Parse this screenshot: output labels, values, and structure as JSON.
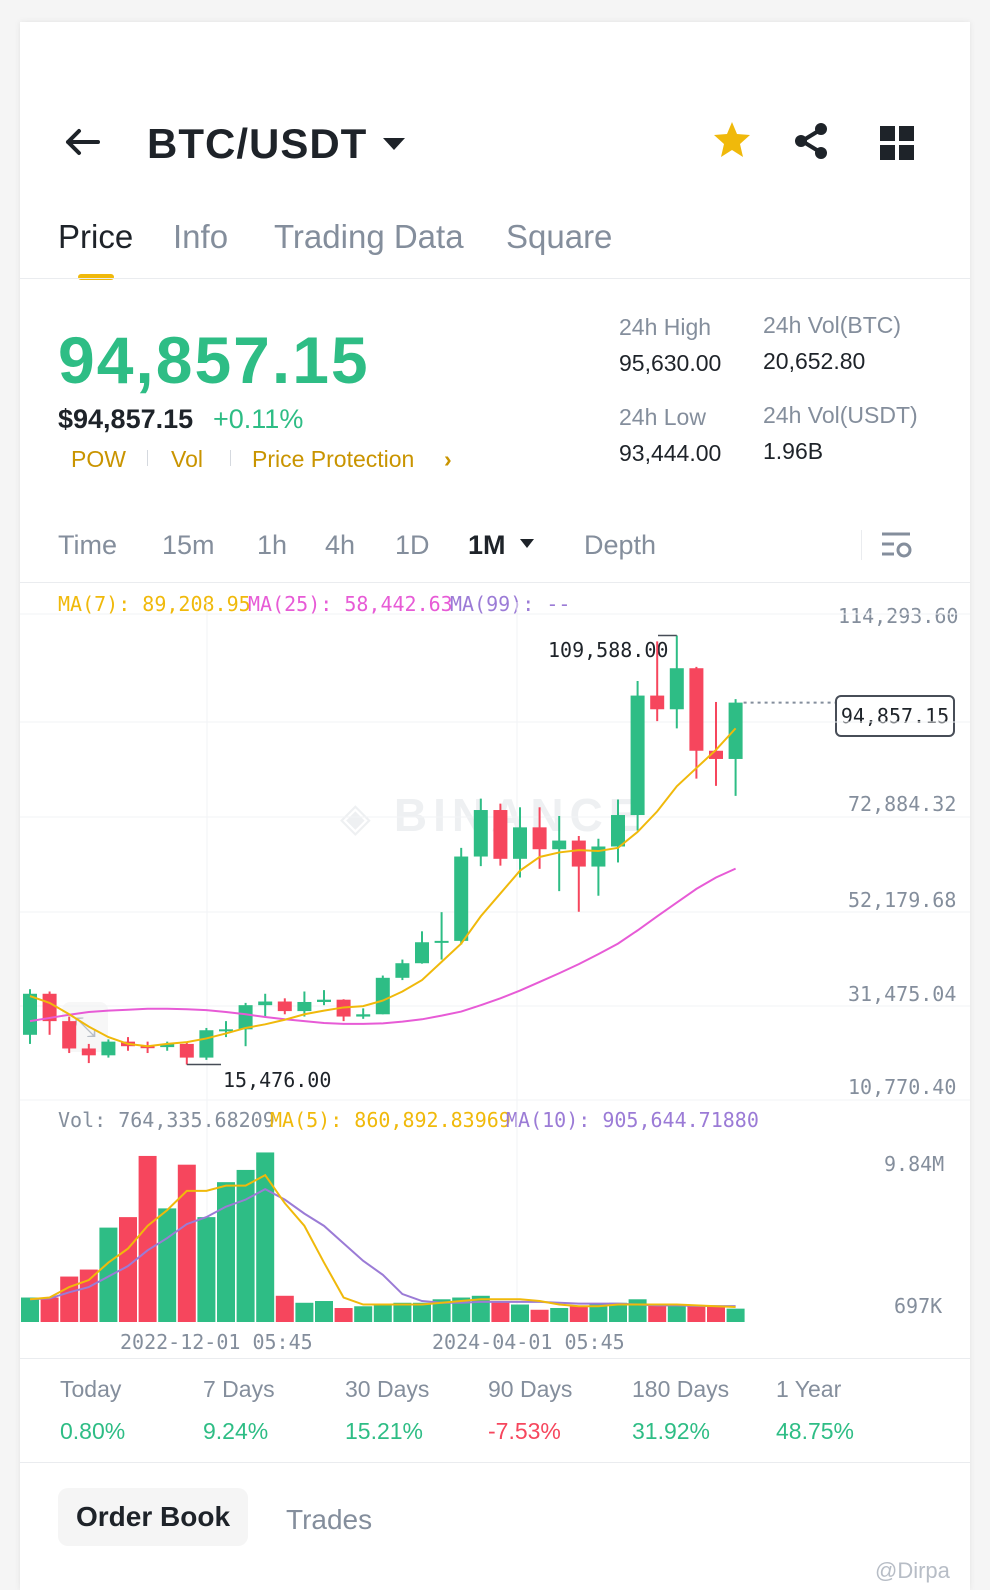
{
  "header": {
    "pair": "BTC/USDT",
    "icons": [
      "back-arrow-icon",
      "caret-down-icon",
      "star-icon",
      "share-icon",
      "grid-icon"
    ]
  },
  "tabs": [
    {
      "label": "Price",
      "active": true
    },
    {
      "label": "Info",
      "active": false
    },
    {
      "label": "Trading Data",
      "active": false
    },
    {
      "label": "Square",
      "active": false
    }
  ],
  "price": {
    "last": "94,857.15",
    "usd": "$94,857.15",
    "change": "+0.11%",
    "tags": [
      "POW",
      "Vol",
      "Price Protection"
    ],
    "chevron": "›"
  },
  "stats": {
    "high_label": "24h High",
    "high_value": "95,630.00",
    "vol_btc_label": "24h Vol(BTC)",
    "vol_btc_value": "20,652.80",
    "low_label": "24h Low",
    "low_value": "93,444.00",
    "vol_usdt_label": "24h Vol(USDT)",
    "vol_usdt_value": "1.96B"
  },
  "intervals": {
    "items": [
      "Time",
      "15m",
      "1h",
      "4h",
      "1D",
      "1M",
      "Depth"
    ],
    "active": "1M"
  },
  "chart": {
    "ma7": "MA(7): 89,208.95",
    "ma25": "MA(25): 58,442.63",
    "ma99": "MA(99): --",
    "y_ticks": [
      "114,293.60",
      "72,884.32",
      "52,179.68",
      "31,475.04",
      "10,770.40"
    ],
    "current_price_tag": "94,857.15",
    "max_label": "109,588.00",
    "min_label": "15,476.00",
    "watermark": "BINANCE",
    "vol_label": "Vol: 764,335.68209",
    "vol_ma5": "MA(5): 860,892.83969",
    "vol_ma10": "MA(10): 905,644.71880",
    "vol_ticks": [
      "9.84M",
      "697K"
    ],
    "x_ticks": [
      "2022-12-01 05:45",
      "2024-04-01 05:45"
    ],
    "colors": {
      "up": "#2ebd85",
      "down": "#f6465d",
      "ma7": "#f0b90b",
      "ma25": "#e75bd6",
      "ma99": "#9b7bd6"
    }
  },
  "chart_data": {
    "type": "candlestick",
    "interval": "1M",
    "y_range": [
      10770.4,
      114293.6
    ],
    "candles": [
      {
        "o": 22000,
        "c": 31000,
        "h": 32000,
        "l": 20000
      },
      {
        "o": 31000,
        "c": 25000,
        "h": 31500,
        "l": 22000
      },
      {
        "o": 25000,
        "c": 19000,
        "h": 26000,
        "l": 18000
      },
      {
        "o": 19000,
        "c": 17500,
        "h": 20000,
        "l": 15800
      },
      {
        "o": 17500,
        "c": 20500,
        "h": 21000,
        "l": 17000
      },
      {
        "o": 20500,
        "c": 19500,
        "h": 21500,
        "l": 18500
      },
      {
        "o": 19500,
        "c": 19300,
        "h": 20500,
        "l": 18000
      },
      {
        "o": 19300,
        "c": 20000,
        "h": 20500,
        "l": 18500
      },
      {
        "o": 20000,
        "c": 17000,
        "h": 20500,
        "l": 15476
      },
      {
        "o": 17000,
        "c": 23000,
        "h": 23500,
        "l": 16500
      },
      {
        "o": 23000,
        "c": 23200,
        "h": 25000,
        "l": 21500
      },
      {
        "o": 23200,
        "c": 28500,
        "h": 29000,
        "l": 19500
      },
      {
        "o": 28500,
        "c": 29300,
        "h": 31000,
        "l": 26000
      },
      {
        "o": 29300,
        "c": 27200,
        "h": 30000,
        "l": 26500
      },
      {
        "o": 27200,
        "c": 29200,
        "h": 31500,
        "l": 26000
      },
      {
        "o": 29200,
        "c": 29700,
        "h": 31800,
        "l": 28500
      },
      {
        "o": 29700,
        "c": 26000,
        "h": 29800,
        "l": 25000
      },
      {
        "o": 26000,
        "c": 26500,
        "h": 27800,
        "l": 25500
      },
      {
        "o": 26500,
        "c": 34500,
        "h": 35000,
        "l": 26500
      },
      {
        "o": 34500,
        "c": 37700,
        "h": 38500,
        "l": 34000
      },
      {
        "o": 37700,
        "c": 42300,
        "h": 44700,
        "l": 37600
      },
      {
        "o": 42300,
        "c": 42600,
        "h": 48900,
        "l": 38500
      },
      {
        "o": 42600,
        "c": 61100,
        "h": 63000,
        "l": 41800
      },
      {
        "o": 61100,
        "c": 71300,
        "h": 73800,
        "l": 59000
      },
      {
        "o": 71300,
        "c": 60600,
        "h": 72700,
        "l": 59100
      },
      {
        "o": 60600,
        "c": 67500,
        "h": 71900,
        "l": 56500
      },
      {
        "o": 67500,
        "c": 62700,
        "h": 71900,
        "l": 58400
      },
      {
        "o": 62700,
        "c": 64600,
        "h": 70000,
        "l": 53500
      },
      {
        "o": 64600,
        "c": 58900,
        "h": 65600,
        "l": 49000
      },
      {
        "o": 58900,
        "c": 63300,
        "h": 65000,
        "l": 52500
      },
      {
        "o": 63300,
        "c": 70200,
        "h": 73600,
        "l": 59800
      },
      {
        "o": 70200,
        "c": 96400,
        "h": 99600,
        "l": 66800
      },
      {
        "o": 96400,
        "c": 93400,
        "h": 108300,
        "l": 90800
      },
      {
        "o": 93400,
        "c": 102400,
        "h": 109588,
        "l": 89200
      },
      {
        "o": 102400,
        "c": 84300,
        "h": 102700,
        "l": 78200
      },
      {
        "o": 84300,
        "c": 82500,
        "h": 95000,
        "l": 76600
      },
      {
        "o": 82500,
        "c": 94857.15,
        "h": 95630,
        "l": 74400
      }
    ],
    "ma7": [
      30500,
      29000,
      26500,
      23800,
      21500,
      20000,
      19500,
      20000,
      20400,
      21200,
      22300,
      23500,
      24300,
      25300,
      26500,
      27300,
      28000,
      28300,
      29500,
      31500,
      34000,
      38000,
      42000,
      48000,
      53000,
      58000,
      61000,
      62000,
      62500,
      62300,
      63000,
      66500,
      71000,
      76500,
      80500,
      84500,
      89208.95
    ],
    "ma25": [
      25000,
      25700,
      26400,
      27000,
      27300,
      27500,
      27700,
      27700,
      27600,
      27400,
      27000,
      26500,
      25900,
      25400,
      25000,
      24600,
      24400,
      24400,
      24500,
      24900,
      25400,
      26200,
      27100,
      28500,
      30000,
      31700,
      33600,
      35500,
      37500,
      39700,
      42000,
      44900,
      48000,
      51000,
      54000,
      56500,
      58442.63
    ],
    "volume": {
      "y_range": [
        697000,
        9840000
      ],
      "bars": [
        1400000,
        1400000,
        2600000,
        3000000,
        5400000,
        6000000,
        9500000,
        6500000,
        9000000,
        6000000,
        8000000,
        8700000,
        9700000,
        1500000,
        1100000,
        1200000,
        800000,
        900000,
        1000000,
        1100000,
        1100000,
        1300000,
        1400000,
        1500000,
        1200000,
        1000000,
        700000,
        800000,
        900000,
        1000000,
        1100000,
        1300000,
        1000000,
        1000000,
        900000,
        900000,
        764335.68
      ],
      "ma5": [
        1300000,
        1400000,
        2000000,
        2400000,
        3400000,
        4200000,
        5500000,
        6400000,
        7500000,
        7500000,
        7800000,
        7800000,
        8400000,
        6800000,
        5500000,
        3400000,
        1400000,
        1000000,
        1000000,
        1000000,
        1000000,
        1100000,
        1200000,
        1300000,
        1300000,
        1300000,
        1200000,
        1000000,
        900000,
        900000,
        1000000,
        1000000,
        1000000,
        1000000,
        950000,
        900000,
        860892.84
      ],
      "ma10": [
        1300000,
        1350000,
        1700000,
        2000000,
        2600000,
        3200000,
        4100000,
        4800000,
        5600000,
        6000000,
        6600000,
        7000000,
        7600000,
        7000000,
        6200000,
        5500000,
        4500000,
        3500000,
        2700000,
        1600000,
        1200000,
        1100000,
        1100000,
        1150000,
        1150000,
        1150000,
        1150000,
        1100000,
        1050000,
        1050000,
        1050000,
        1000000,
        950000,
        950000,
        920000,
        910000,
        905644.72
      ]
    }
  },
  "performance": [
    {
      "label": "Today",
      "value": "0.80%",
      "dir": "up"
    },
    {
      "label": "7 Days",
      "value": "9.24%",
      "dir": "up"
    },
    {
      "label": "30 Days",
      "value": "15.21%",
      "dir": "up"
    },
    {
      "label": "90 Days",
      "value": "-7.53%",
      "dir": "down"
    },
    {
      "label": "180 Days",
      "value": "31.92%",
      "dir": "up"
    },
    {
      "label": "1 Year",
      "value": "48.75%",
      "dir": "up"
    }
  ],
  "bottom_tabs": {
    "order_book": "Order Book",
    "trades": "Trades"
  },
  "watermark_user": "@Dirpa"
}
